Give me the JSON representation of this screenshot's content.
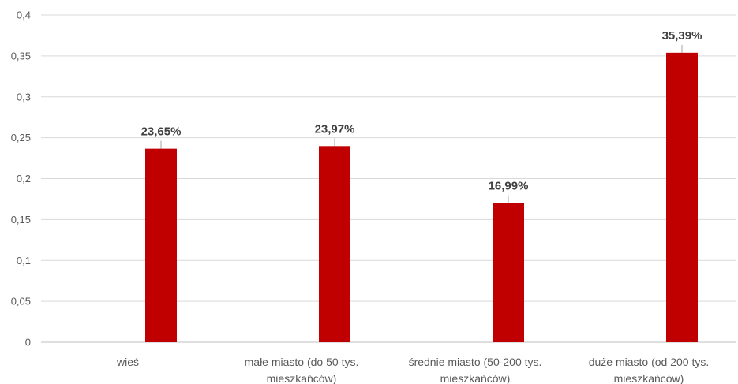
{
  "chart_data": {
    "type": "bar",
    "categories": [
      [
        "wieś"
      ],
      [
        "małe miasto (do 50 tys.",
        "mieszkańców)"
      ],
      [
        "średnie miasto (50-200 tys.",
        "mieszkańców)"
      ],
      [
        "duże miasto (od 200 tys.",
        "mieszkańców)"
      ]
    ],
    "values": [
      0.2365,
      0.2397,
      0.1699,
      0.3539
    ],
    "data_labels": [
      "23,65%",
      "23,97%",
      "16,99%",
      "35,39%"
    ],
    "y_ticks": [
      "0",
      "0,05",
      "0,1",
      "0,15",
      "0,2",
      "0,25",
      "0,3",
      "0,35",
      "0,4"
    ],
    "ylim": [
      0,
      0.4
    ],
    "grid": true,
    "legend": "none",
    "colors": {
      "bar": "#C00000",
      "grid": "#D9D9D9",
      "axis": "#BFBFBF"
    }
  }
}
